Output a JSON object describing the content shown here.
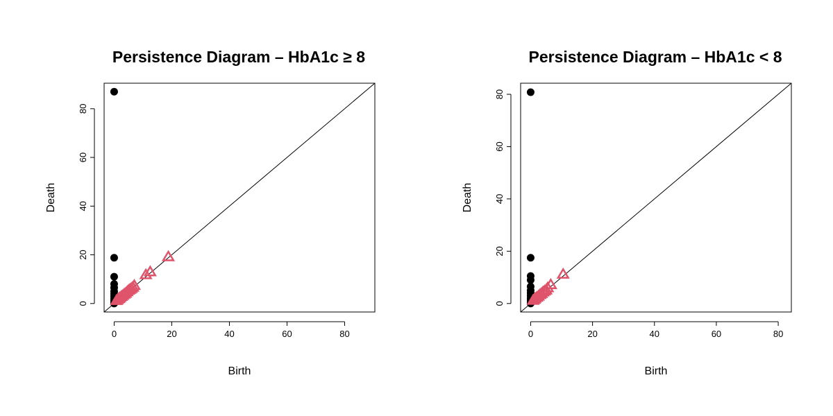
{
  "colors": {
    "dim0": "#000000",
    "dim1": "#DF536B",
    "diagonal": "#000000"
  },
  "chart_data": [
    {
      "type": "scatter",
      "title": "Persistence Diagram – HbA1c ≥ 8",
      "xlabel": "Birth",
      "ylabel": "Death",
      "xlim": [
        0,
        87
      ],
      "ylim": [
        0,
        87
      ],
      "xticks": [
        "0",
        "20",
        "40",
        "60",
        "80"
      ],
      "yticks": [
        "0",
        "20",
        "40",
        "60",
        "80"
      ],
      "diagonal": true,
      "series": [
        {
          "marker": "filled-circle",
          "color": "#000000",
          "points": [
            [
              0,
              87
            ],
            [
              0,
              18.8
            ],
            [
              0,
              11
            ],
            [
              0,
              8
            ],
            [
              0,
              6.5
            ],
            [
              0,
              5
            ],
            [
              0,
              4
            ],
            [
              0,
              3
            ],
            [
              0,
              2
            ],
            [
              0,
              1.2
            ],
            [
              0,
              0.5
            ],
            [
              0,
              0
            ]
          ]
        },
        {
          "marker": "open-triangle",
          "color": "#DF536B",
          "points": [
            [
              18.8,
              19
            ],
            [
              12.5,
              12.8
            ],
            [
              11,
              11.6
            ],
            [
              7,
              7.2
            ],
            [
              6.5,
              6.5
            ],
            [
              6,
              6
            ],
            [
              5.5,
              5.6
            ],
            [
              5,
              5.2
            ],
            [
              4.5,
              4.6
            ],
            [
              4,
              4
            ],
            [
              3.5,
              3.6
            ],
            [
              3,
              3.1
            ],
            [
              2.5,
              2.7
            ],
            [
              2,
              2.2
            ],
            [
              1.6,
              1.8
            ],
            [
              1.2,
              1.4
            ],
            [
              0.8,
              1
            ]
          ]
        }
      ]
    },
    {
      "type": "scatter",
      "title": "Persistence Diagram – HbA1c < 8",
      "xlabel": "Birth",
      "ylabel": "Death",
      "xlim": [
        0,
        81
      ],
      "ylim": [
        0,
        81
      ],
      "xticks": [
        "0",
        "20",
        "40",
        "60",
        "80"
      ],
      "yticks": [
        "0",
        "20",
        "40",
        "60",
        "80"
      ],
      "diagonal": true,
      "series": [
        {
          "marker": "filled-circle",
          "color": "#000000",
          "points": [
            [
              0,
              80.8
            ],
            [
              0,
              17.5
            ],
            [
              0,
              10.5
            ],
            [
              0,
              9
            ],
            [
              0,
              6.5
            ],
            [
              0,
              5
            ],
            [
              0,
              4
            ],
            [
              0,
              3
            ],
            [
              0,
              2
            ],
            [
              0,
              1.2
            ],
            [
              0,
              0.5
            ],
            [
              0,
              0
            ]
          ]
        },
        {
          "marker": "open-triangle",
          "color": "#DF536B",
          "points": [
            [
              10.5,
              11
            ],
            [
              6.5,
              7
            ],
            [
              5.5,
              5.8
            ],
            [
              5,
              5
            ],
            [
              4.5,
              4.6
            ],
            [
              4,
              4.2
            ],
            [
              3.5,
              3.6
            ],
            [
              3,
              3.2
            ],
            [
              2.5,
              2.6
            ],
            [
              2,
              2.2
            ],
            [
              1.5,
              1.8
            ],
            [
              1.2,
              1.4
            ],
            [
              0.8,
              1
            ]
          ]
        }
      ]
    }
  ]
}
